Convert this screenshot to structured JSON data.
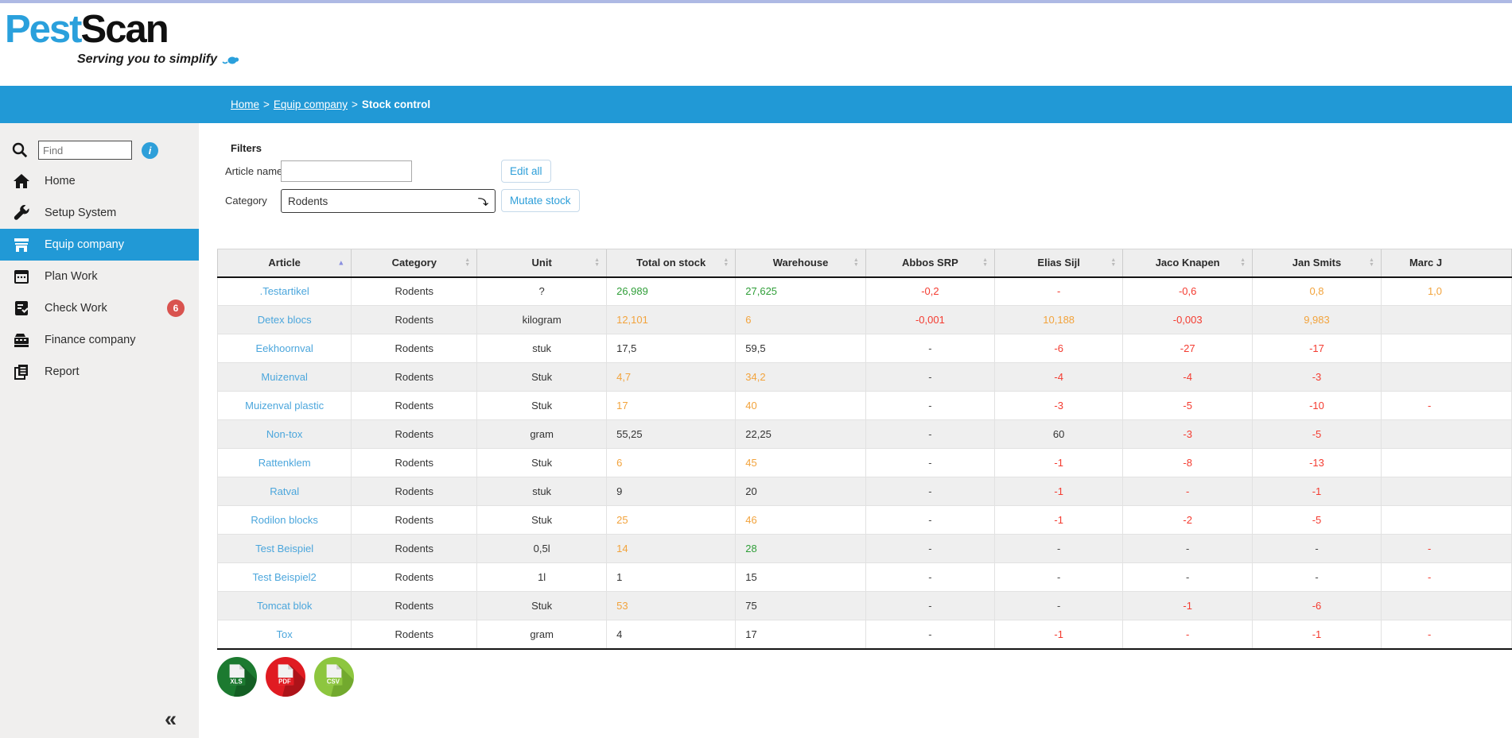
{
  "logo": {
    "part1": "Pest",
    "part2": "Scan",
    "tagline": "Serving you to simplify"
  },
  "breadcrumb": {
    "links": [
      "Home",
      "Equip company"
    ],
    "current": "Stock control",
    "separator": ">"
  },
  "sidebar": {
    "find_placeholder": "Find",
    "info_label": "i",
    "collapse_glyph": "«",
    "items": [
      {
        "label": "Home",
        "icon": "home-icon",
        "active": false,
        "badge": ""
      },
      {
        "label": "Setup System",
        "icon": "wrench-icon",
        "active": false,
        "badge": ""
      },
      {
        "label": "Equip company",
        "icon": "store-icon",
        "active": true,
        "badge": ""
      },
      {
        "label": "Plan Work",
        "icon": "calendar-icon",
        "active": false,
        "badge": ""
      },
      {
        "label": "Check Work",
        "icon": "checklist-icon",
        "active": false,
        "badge": "6"
      },
      {
        "label": "Finance company",
        "icon": "cash-register-icon",
        "active": false,
        "badge": ""
      },
      {
        "label": "Report",
        "icon": "report-icon",
        "active": false,
        "badge": ""
      }
    ]
  },
  "filters": {
    "title": "Filters",
    "article_name_label": "Article name",
    "article_name_value": "",
    "category_label": "Category",
    "category_value": "Rodents",
    "edit_all_label": "Edit all",
    "mutate_stock_label": "Mutate stock"
  },
  "table": {
    "columns": [
      {
        "label": "Article",
        "sort": "asc"
      },
      {
        "label": "Category",
        "sort": "both"
      },
      {
        "label": "Unit",
        "sort": "both"
      },
      {
        "label": "Total on stock",
        "sort": "both"
      },
      {
        "label": "Warehouse",
        "sort": "both"
      },
      {
        "label": "Abbos SRP",
        "sort": "both"
      },
      {
        "label": "Elias Sijl",
        "sort": "both"
      },
      {
        "label": "Jaco Knapen",
        "sort": "both"
      },
      {
        "label": "Jan Smits",
        "sort": "both"
      },
      {
        "label": "Marc J",
        "sort": "none"
      }
    ],
    "rows": [
      {
        "article": ".Testartikel",
        "category": "Rodents",
        "unit": "?",
        "values": [
          {
            "v": "26,989",
            "c": "green"
          },
          {
            "v": "27,625",
            "c": "green"
          },
          {
            "v": "-0,2",
            "c": "red"
          },
          {
            "v": "-",
            "c": "red"
          },
          {
            "v": "-0,6",
            "c": "red"
          },
          {
            "v": "0,8",
            "c": "orange"
          },
          {
            "v": "1,0",
            "c": "orange"
          }
        ]
      },
      {
        "article": "Detex blocs",
        "category": "Rodents",
        "unit": "kilogram",
        "values": [
          {
            "v": "12,101",
            "c": "orange"
          },
          {
            "v": "6",
            "c": "orange"
          },
          {
            "v": "-0,001",
            "c": "red"
          },
          {
            "v": "10,188",
            "c": "orange"
          },
          {
            "v": "-0,003",
            "c": "red"
          },
          {
            "v": "9,983",
            "c": "orange"
          },
          {
            "v": "",
            "c": "black"
          }
        ]
      },
      {
        "article": "Eekhoornval",
        "category": "Rodents",
        "unit": "stuk",
        "values": [
          {
            "v": "17,5",
            "c": "black"
          },
          {
            "v": "59,5",
            "c": "black"
          },
          {
            "v": "-",
            "c": "dark"
          },
          {
            "v": "-6",
            "c": "red"
          },
          {
            "v": "-27",
            "c": "red"
          },
          {
            "v": "-17",
            "c": "red"
          },
          {
            "v": "",
            "c": "black"
          }
        ]
      },
      {
        "article": "Muizenval",
        "category": "Rodents",
        "unit": "Stuk",
        "values": [
          {
            "v": "4,7",
            "c": "orange"
          },
          {
            "v": "34,2",
            "c": "orange"
          },
          {
            "v": "-",
            "c": "dark"
          },
          {
            "v": "-4",
            "c": "red"
          },
          {
            "v": "-4",
            "c": "red"
          },
          {
            "v": "-3",
            "c": "red"
          },
          {
            "v": "",
            "c": "black"
          }
        ]
      },
      {
        "article": "Muizenval plastic",
        "category": "Rodents",
        "unit": "Stuk",
        "values": [
          {
            "v": "17",
            "c": "orange"
          },
          {
            "v": "40",
            "c": "orange"
          },
          {
            "v": "-",
            "c": "dark"
          },
          {
            "v": "-3",
            "c": "red"
          },
          {
            "v": "-5",
            "c": "red"
          },
          {
            "v": "-10",
            "c": "red"
          },
          {
            "v": "-",
            "c": "red"
          }
        ]
      },
      {
        "article": "Non-tox",
        "category": "Rodents",
        "unit": "gram",
        "values": [
          {
            "v": "55,25",
            "c": "black"
          },
          {
            "v": "22,25",
            "c": "black"
          },
          {
            "v": "-",
            "c": "dark"
          },
          {
            "v": "60",
            "c": "black"
          },
          {
            "v": "-3",
            "c": "red"
          },
          {
            "v": "-5",
            "c": "red"
          },
          {
            "v": "",
            "c": "black"
          }
        ]
      },
      {
        "article": "Rattenklem",
        "category": "Rodents",
        "unit": "Stuk",
        "values": [
          {
            "v": "6",
            "c": "orange"
          },
          {
            "v": "45",
            "c": "orange"
          },
          {
            "v": "-",
            "c": "dark"
          },
          {
            "v": "-1",
            "c": "red"
          },
          {
            "v": "-8",
            "c": "red"
          },
          {
            "v": "-13",
            "c": "red"
          },
          {
            "v": "",
            "c": "black"
          }
        ]
      },
      {
        "article": "Ratval",
        "category": "Rodents",
        "unit": "stuk",
        "values": [
          {
            "v": "9",
            "c": "black"
          },
          {
            "v": "20",
            "c": "black"
          },
          {
            "v": "-",
            "c": "dark"
          },
          {
            "v": "-1",
            "c": "red"
          },
          {
            "v": "-",
            "c": "red"
          },
          {
            "v": "-1",
            "c": "red"
          },
          {
            "v": "",
            "c": "black"
          }
        ]
      },
      {
        "article": "Rodilon blocks",
        "category": "Rodents",
        "unit": "Stuk",
        "values": [
          {
            "v": "25",
            "c": "orange"
          },
          {
            "v": "46",
            "c": "orange"
          },
          {
            "v": "-",
            "c": "dark"
          },
          {
            "v": "-1",
            "c": "red"
          },
          {
            "v": "-2",
            "c": "red"
          },
          {
            "v": "-5",
            "c": "red"
          },
          {
            "v": "",
            "c": "black"
          }
        ]
      },
      {
        "article": "Test Beispiel",
        "category": "Rodents",
        "unit": "0,5l",
        "values": [
          {
            "v": "14",
            "c": "orange"
          },
          {
            "v": "28",
            "c": "green"
          },
          {
            "v": "-",
            "c": "dark"
          },
          {
            "v": "-",
            "c": "dark"
          },
          {
            "v": "-",
            "c": "dark"
          },
          {
            "v": "-",
            "c": "dark"
          },
          {
            "v": "-",
            "c": "red"
          }
        ]
      },
      {
        "article": "Test Beispiel2",
        "category": "Rodents",
        "unit": "1l",
        "values": [
          {
            "v": "1",
            "c": "black"
          },
          {
            "v": "15",
            "c": "black"
          },
          {
            "v": "-",
            "c": "dark"
          },
          {
            "v": "-",
            "c": "dark"
          },
          {
            "v": "-",
            "c": "dark"
          },
          {
            "v": "-",
            "c": "dark"
          },
          {
            "v": "-",
            "c": "red"
          }
        ]
      },
      {
        "article": "Tomcat blok",
        "category": "Rodents",
        "unit": "Stuk",
        "values": [
          {
            "v": "53",
            "c": "orange"
          },
          {
            "v": "75",
            "c": "black"
          },
          {
            "v": "-",
            "c": "dark"
          },
          {
            "v": "-",
            "c": "dark"
          },
          {
            "v": "-1",
            "c": "red"
          },
          {
            "v": "-6",
            "c": "red"
          },
          {
            "v": "",
            "c": "black"
          }
        ]
      },
      {
        "article": "Tox",
        "category": "Rodents",
        "unit": "gram",
        "values": [
          {
            "v": "4",
            "c": "black"
          },
          {
            "v": "17",
            "c": "black"
          },
          {
            "v": "-",
            "c": "dark"
          },
          {
            "v": "-1",
            "c": "red"
          },
          {
            "v": "-",
            "c": "red"
          },
          {
            "v": "-1",
            "c": "red"
          },
          {
            "v": "-",
            "c": "red"
          }
        ]
      }
    ]
  },
  "exports": [
    {
      "label": "XLS",
      "color": "#1c7a30",
      "shade": "#135a22"
    },
    {
      "label": "PDF",
      "color": "#e01b22",
      "shade": "#a31217"
    },
    {
      "label": "CSV",
      "color": "#8dc63f",
      "shade": "#6da32c"
    }
  ],
  "colors": {
    "accent_blue": "#2199d6",
    "link_blue": "#4ba6dc",
    "value_green": "#2f9e38",
    "value_orange": "#f2a33c",
    "value_red": "#f43b30",
    "badge_red": "#d9534f"
  }
}
